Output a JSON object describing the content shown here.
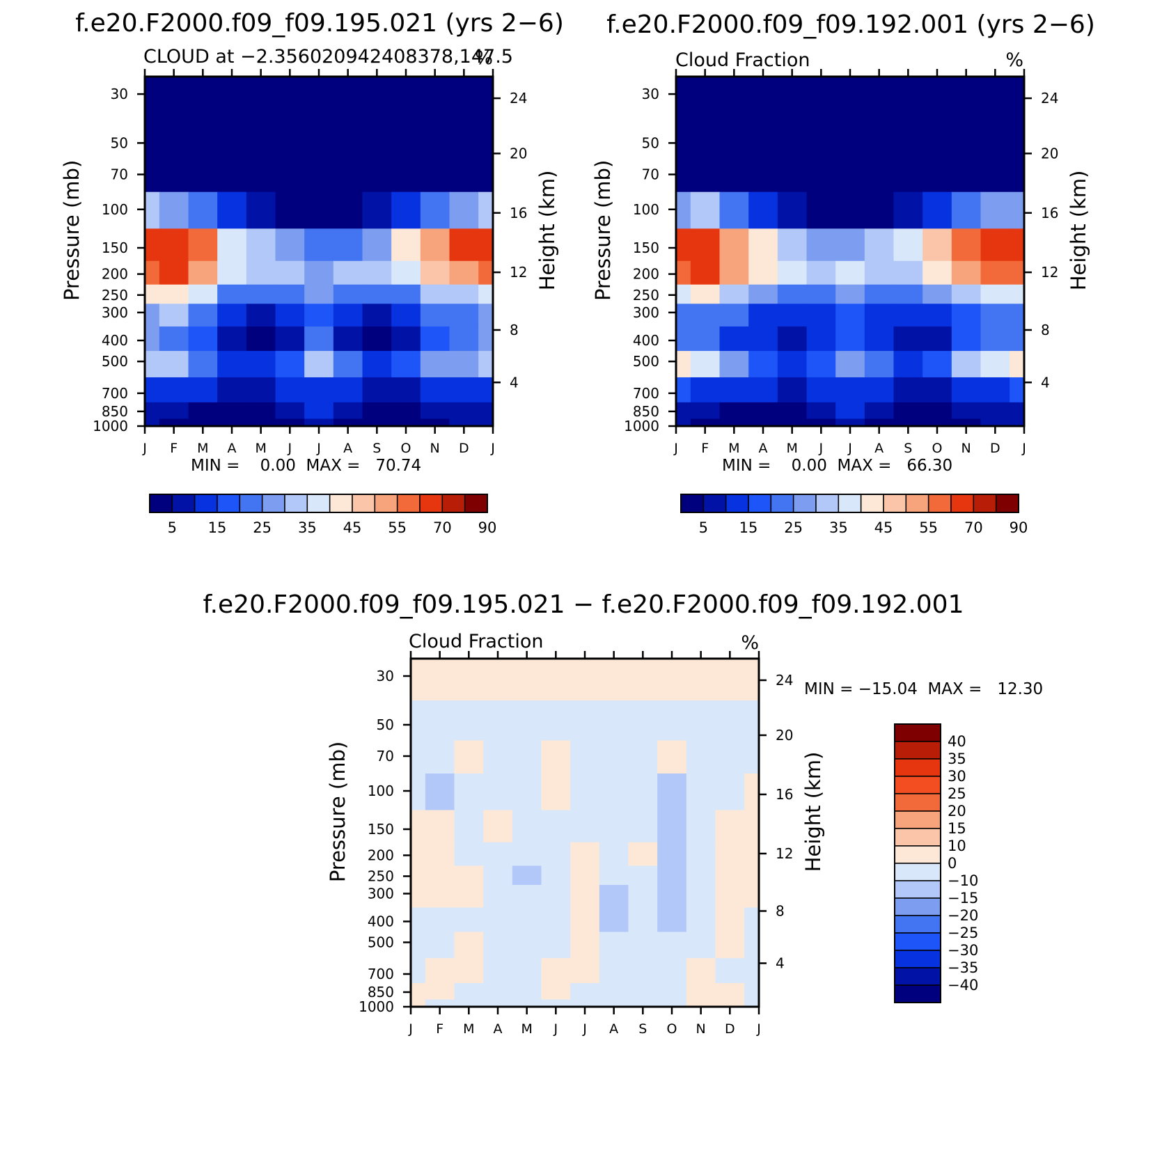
{
  "panels": {
    "left": {
      "case_title": "f.e20.F2000.f09_f09.195.021 (yrs 2−6)",
      "left_label": "CLOUD at −2.356020942408378,147.5",
      "right_label": "%",
      "minmax": "MIN =    0.00  MAX =   70.74"
    },
    "right": {
      "case_title": "f.e20.F2000.f09_f09.192.001 (yrs 2−6)",
      "left_label": "Cloud Fraction",
      "right_label": "%",
      "minmax": "MIN =    0.00  MAX =   66.30"
    },
    "diff": {
      "case_title": "f.e20.F2000.f09_f09.195.021 − f.e20.F2000.f09_f09.192.001",
      "left_label": "Cloud Fraction",
      "right_label": "%",
      "minmax": "MIN = −15.04  MAX =   12.30"
    }
  },
  "axes": {
    "ylabel_left": "Pressure (mb)",
    "ylabel_right": "Height (km)",
    "pressure_ticks": [
      "30",
      "50",
      "70",
      "100",
      "150",
      "200",
      "250",
      "300",
      "400",
      "500",
      "700",
      "850",
      "1000"
    ],
    "height_ticks": [
      "24",
      "20",
      "16",
      "12",
      "8",
      "4"
    ],
    "month_ticks": [
      "J",
      "F",
      "M",
      "A",
      "M",
      "J",
      "J",
      "A",
      "S",
      "O",
      "N",
      "D",
      "J"
    ]
  },
  "colorbars": {
    "cloud_labels": [
      "5",
      "15",
      "25",
      "35",
      "45",
      "55",
      "70",
      "90"
    ],
    "diff_labels": [
      "40",
      "35",
      "30",
      "25",
      "20",
      "15",
      "10",
      "0",
      "−10",
      "−15",
      "−20",
      "−25",
      "−30",
      "−35",
      "−40"
    ]
  },
  "chart_data": [
    {
      "type": "heatmap",
      "title": "CLOUD at −2.356020942408378,147.5",
      "case": "f.e20.F2000.f09_f09.195.021 (yrs 2−6)",
      "units": "%",
      "xlabel": "",
      "ylabel": "Pressure (mb)",
      "ylabel_right": "Height (km)",
      "x": [
        "J",
        "F",
        "M",
        "A",
        "M",
        "J",
        "J",
        "A",
        "S",
        "O",
        "N",
        "D",
        "J"
      ],
      "y_pressure": [
        30,
        50,
        70,
        100,
        150,
        200,
        250,
        300,
        400,
        500,
        700,
        850,
        1000
      ],
      "z": [
        [
          0,
          0,
          0,
          0,
          0,
          0,
          0,
          0,
          0,
          0,
          0,
          0,
          0
        ],
        [
          0,
          0,
          0,
          0,
          0,
          0,
          0,
          0,
          0,
          0,
          0,
          0,
          0
        ],
        [
          0,
          0,
          0,
          0,
          0,
          0,
          0,
          0,
          0,
          0,
          0,
          0,
          0
        ],
        [
          30,
          28,
          22,
          12,
          6,
          3,
          2,
          3,
          5,
          10,
          20,
          28,
          30
        ],
        [
          60,
          66,
          55,
          38,
          30,
          26,
          22,
          24,
          28,
          40,
          50,
          60,
          62
        ],
        [
          58,
          64,
          52,
          36,
          32,
          30,
          28,
          30,
          32,
          38,
          48,
          52,
          55
        ],
        [
          40,
          44,
          36,
          24,
          20,
          22,
          26,
          22,
          20,
          24,
          32,
          34,
          38
        ],
        [
          28,
          30,
          24,
          14,
          8,
          10,
          18,
          10,
          8,
          12,
          20,
          24,
          28
        ],
        [
          25,
          22,
          18,
          8,
          4,
          8,
          20,
          8,
          4,
          8,
          18,
          20,
          26
        ],
        [
          34,
          30,
          22,
          14,
          10,
          16,
          32,
          22,
          10,
          16,
          26,
          28,
          32
        ],
        [
          14,
          14,
          12,
          8,
          6,
          10,
          14,
          10,
          6,
          8,
          12,
          14,
          14
        ],
        [
          8,
          6,
          4,
          3,
          3,
          6,
          10,
          6,
          3,
          3,
          6,
          8,
          8
        ],
        [
          6,
          4,
          3,
          2,
          2,
          4,
          6,
          4,
          2,
          2,
          4,
          6,
          6
        ]
      ],
      "colorbar_levels": [
        5,
        10,
        15,
        20,
        25,
        30,
        35,
        40,
        45,
        50,
        55,
        60,
        70,
        80,
        90
      ],
      "colorbar_labels": [
        "5",
        "15",
        "25",
        "35",
        "45",
        "55",
        "70",
        "90"
      ],
      "min": 0.0,
      "max": 70.74
    },
    {
      "type": "heatmap",
      "title": "Cloud Fraction",
      "case": "f.e20.F2000.f09_f09.192.001 (yrs 2−6)",
      "units": "%",
      "xlabel": "",
      "ylabel": "Pressure (mb)",
      "ylabel_right": "Height (km)",
      "x": [
        "J",
        "F",
        "M",
        "A",
        "M",
        "J",
        "J",
        "A",
        "S",
        "O",
        "N",
        "D",
        "J"
      ],
      "y_pressure": [
        30,
        50,
        70,
        100,
        150,
        200,
        250,
        300,
        400,
        500,
        700,
        850,
        1000
      ],
      "z": [
        [
          0,
          0,
          0,
          0,
          0,
          0,
          0,
          0,
          0,
          0,
          0,
          0,
          0
        ],
        [
          0,
          0,
          0,
          0,
          0,
          0,
          0,
          0,
          0,
          0,
          0,
          0,
          0
        ],
        [
          0,
          0,
          0,
          0,
          0,
          0,
          0,
          0,
          0,
          0,
          0,
          0,
          0
        ],
        [
          28,
          30,
          24,
          14,
          8,
          4,
          3,
          4,
          6,
          12,
          22,
          26,
          28
        ],
        [
          60,
          64,
          54,
          42,
          34,
          28,
          26,
          30,
          36,
          48,
          56,
          60,
          62
        ],
        [
          56,
          60,
          50,
          40,
          36,
          34,
          38,
          34,
          34,
          44,
          52,
          56,
          56
        ],
        [
          38,
          40,
          34,
          26,
          22,
          24,
          28,
          24,
          22,
          28,
          34,
          36,
          38
        ],
        [
          24,
          22,
          20,
          14,
          10,
          12,
          18,
          12,
          10,
          14,
          18,
          22,
          24
        ],
        [
          22,
          20,
          14,
          10,
          6,
          10,
          18,
          10,
          6,
          8,
          16,
          22,
          24
        ],
        [
          42,
          36,
          26,
          16,
          12,
          18,
          28,
          22,
          14,
          18,
          30,
          36,
          42
        ],
        [
          16,
          14,
          12,
          10,
          8,
          12,
          14,
          12,
          8,
          8,
          12,
          14,
          16
        ],
        [
          8,
          6,
          4,
          3,
          3,
          6,
          10,
          6,
          3,
          3,
          6,
          8,
          8
        ],
        [
          6,
          4,
          3,
          2,
          2,
          4,
          6,
          4,
          2,
          2,
          4,
          6,
          6
        ]
      ],
      "colorbar_levels": [
        5,
        10,
        15,
        20,
        25,
        30,
        35,
        40,
        45,
        50,
        55,
        60,
        70,
        80,
        90
      ],
      "colorbar_labels": [
        "5",
        "15",
        "25",
        "35",
        "45",
        "55",
        "70",
        "90"
      ],
      "min": 0.0,
      "max": 66.3
    },
    {
      "type": "heatmap",
      "title": "Cloud Fraction",
      "case": "f.e20.F2000.f09_f09.195.021 − f.e20.F2000.f09_f09.192.001",
      "units": "%",
      "xlabel": "",
      "ylabel": "Pressure (mb)",
      "ylabel_right": "Height (km)",
      "x": [
        "J",
        "F",
        "M",
        "A",
        "M",
        "J",
        "J",
        "A",
        "S",
        "O",
        "N",
        "D",
        "J"
      ],
      "y_pressure": [
        30,
        50,
        70,
        100,
        150,
        200,
        250,
        300,
        400,
        500,
        700,
        850,
        1000
      ],
      "z": [
        [
          1,
          1,
          1,
          1,
          1,
          1,
          1,
          1,
          1,
          1,
          1,
          1,
          1
        ],
        [
          -1,
          -1,
          -1,
          -1,
          -1,
          -1,
          -1,
          -1,
          -1,
          -1,
          -1,
          -1,
          -1
        ],
        [
          -1,
          -1,
          1,
          -1,
          -1,
          2,
          -1,
          -1,
          -1,
          1,
          -1,
          -1,
          -1
        ],
        [
          -2,
          -11,
          -1,
          -2,
          -1,
          1,
          -1,
          -1,
          -1,
          -11,
          -1,
          -1,
          2
        ],
        [
          4,
          3,
          -2,
          3,
          -2,
          -2,
          -1,
          -2,
          -1,
          -11,
          -2,
          3,
          4
        ],
        [
          5,
          4,
          -2,
          -2,
          -2,
          -2,
          2,
          -2,
          2,
          -11,
          -2,
          3,
          4
        ],
        [
          5,
          7,
          4,
          -2,
          -11,
          -2,
          2,
          -2,
          -2,
          -11,
          -2,
          2,
          4
        ],
        [
          5,
          4,
          3,
          -2,
          -2,
          -2,
          3,
          -11,
          -2,
          -11,
          -2,
          2,
          4
        ],
        [
          -2,
          -2,
          -2,
          -2,
          -2,
          -2,
          3,
          -11,
          -2,
          -11,
          -2,
          2,
          -2
        ],
        [
          -2,
          -2,
          2,
          -2,
          -2,
          -2,
          3,
          -2,
          -2,
          -2,
          -2,
          2,
          -2
        ],
        [
          -2,
          3,
          3,
          -2,
          -2,
          3,
          2,
          -2,
          -2,
          -2,
          3,
          -2,
          -2
        ],
        [
          3,
          3,
          -2,
          -2,
          -2,
          2,
          -2,
          -2,
          -2,
          -2,
          2,
          2,
          -2
        ],
        [
          2,
          -2,
          -2,
          -2,
          -2,
          -2,
          -2,
          -2,
          -2,
          -2,
          2,
          2,
          -2
        ]
      ],
      "colorbar_levels": [
        -40,
        -35,
        -30,
        -25,
        -20,
        -15,
        -10,
        0,
        10,
        15,
        20,
        25,
        30,
        35,
        40
      ],
      "colorbar_labels": [
        "40",
        "35",
        "30",
        "25",
        "20",
        "15",
        "10",
        "0",
        "−10",
        "−15",
        "−20",
        "−25",
        "−30",
        "−35",
        "−40"
      ],
      "min": -15.04,
      "max": 12.3
    }
  ],
  "colors": {
    "cloud_scale": [
      "#00007f",
      "#0013a6",
      "#0732df",
      "#1e55f8",
      "#4374f2",
      "#7d9ef0",
      "#b2c8f8",
      "#d8e8fa",
      "#fde8d8",
      "#fac5a8",
      "#f7a47c",
      "#f26a3a",
      "#e6360f",
      "#b81e07",
      "#7e0000"
    ],
    "diff_scale": [
      "#7e0000",
      "#b81e07",
      "#e6360f",
      "#f24e22",
      "#f26a3a",
      "#f7a47c",
      "#fac5a8",
      "#fde8d8",
      "#d8e8fa",
      "#b2c8f8",
      "#7d9ef0",
      "#4374f2",
      "#1e55f8",
      "#0732df",
      "#0013a6",
      "#00007f"
    ]
  }
}
